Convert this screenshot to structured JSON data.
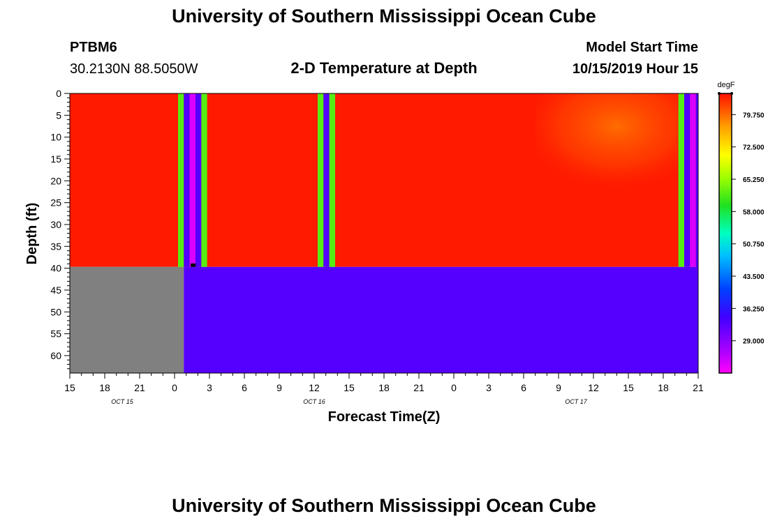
{
  "header": {
    "title": "University of Southern Mississippi Ocean Cube",
    "station": "PTBM6",
    "coords": "30.2130N 88.5050W",
    "subtitle": "2-D Temperature at Depth",
    "start_label": "Model Start Time",
    "start_value": "10/15/2019 Hour 15"
  },
  "footer": {
    "title": "University of Southern Mississippi Ocean Cube"
  },
  "colors": {
    "warm_red": "#ff1a00",
    "orange": "#ff7000",
    "violet": "#5500ff",
    "land_gray": "#808080",
    "green": "#20ee40",
    "magenta": "#ff00ff"
  },
  "chart_data": {
    "type": "heatmap",
    "title": "2-D Temperature at Depth",
    "xlabel": "Forecast Time(Z)",
    "ylabel": "Depth (ft)",
    "xlim": [
      15,
      69
    ],
    "ylim": [
      0,
      64
    ],
    "x_ticks": [
      15,
      18,
      21,
      24,
      27,
      30,
      33,
      36,
      39,
      42,
      45,
      48,
      51,
      54,
      57,
      60,
      63,
      66,
      69
    ],
    "x_tick_labels": [
      "15",
      "18",
      "21",
      "0",
      "3",
      "6",
      "9",
      "12",
      "15",
      "18",
      "21",
      "0",
      "3",
      "6",
      "9",
      "12",
      "15",
      "18",
      "21"
    ],
    "date_labels": [
      {
        "x": 19.5,
        "text": "OCT 15"
      },
      {
        "x": 36,
        "text": "OCT 16"
      },
      {
        "x": 58.5,
        "text": "OCT 17"
      }
    ],
    "y_ticks": [
      0,
      5,
      10,
      15,
      20,
      25,
      30,
      35,
      40,
      45,
      50,
      55,
      60
    ],
    "y_tick_labels": [
      "0",
      "5",
      "10",
      "15",
      "20",
      "25",
      "30",
      "35",
      "40",
      "45",
      "50",
      "55",
      "60"
    ],
    "colorbar": {
      "unit": "degF",
      "min": 21.75,
      "max": 84.5,
      "ticks": [
        29.0,
        36.25,
        43.5,
        50.75,
        58.0,
        65.25,
        72.5,
        79.75
      ],
      "tick_labels": [
        "29.000",
        "36.250",
        "43.500",
        "50.750",
        "58.000",
        "65.250",
        "72.500",
        "79.750"
      ]
    },
    "regions": [
      {
        "label": "upper-water",
        "x0": 15,
        "x1": 69,
        "y0": 0,
        "y1": 39.7,
        "temp": 82.5
      },
      {
        "label": "warm-patch",
        "x0": 55,
        "x1": 69,
        "y0": 0,
        "y1": 25,
        "temp": 77.5
      },
      {
        "label": "no-data",
        "x0": 15,
        "x1": 24.8,
        "y0": 39.7,
        "y1": 64,
        "temp": null
      },
      {
        "label": "deep-water",
        "x0": 24.8,
        "x1": 69,
        "y0": 39.7,
        "y1": 64,
        "temp": 33.0
      },
      {
        "label": "stripe-1",
        "x0": 24.3,
        "x1": 24.8,
        "y0": 0,
        "y1": 39.7,
        "temp": 62.0
      },
      {
        "label": "stripe-2",
        "x0": 24.8,
        "x1": 25.3,
        "y0": 0,
        "y1": 39.7,
        "temp": 33.0
      },
      {
        "label": "stripe-3",
        "x0": 25.3,
        "x1": 25.8,
        "y0": 0,
        "y1": 39.7,
        "temp": 24.0
      },
      {
        "label": "stripe-4",
        "x0": 25.8,
        "x1": 26.3,
        "y0": 0,
        "y1": 39.7,
        "temp": 33.0
      },
      {
        "label": "stripe-5",
        "x0": 26.3,
        "x1": 26.8,
        "y0": 0,
        "y1": 39.7,
        "temp": 62.0
      },
      {
        "label": "stripe-6",
        "x0": 36.3,
        "x1": 36.8,
        "y0": 0,
        "y1": 39.7,
        "temp": 62.0
      },
      {
        "label": "stripe-7",
        "x0": 36.8,
        "x1": 37.3,
        "y0": 0,
        "y1": 39.7,
        "temp": 33.0
      },
      {
        "label": "stripe-8",
        "x0": 37.3,
        "x1": 37.8,
        "y0": 0,
        "y1": 39.7,
        "temp": 62.0
      },
      {
        "label": "stripe-9",
        "x0": 67.3,
        "x1": 67.8,
        "y0": 0,
        "y1": 39.7,
        "temp": 62.0
      },
      {
        "label": "stripe-10",
        "x0": 67.8,
        "x1": 68.3,
        "y0": 0,
        "y1": 39.7,
        "temp": 33.0
      },
      {
        "label": "stripe-11",
        "x0": 68.3,
        "x1": 68.8,
        "y0": 0,
        "y1": 39.7,
        "temp": 24.0
      },
      {
        "label": "stripe-12",
        "x0": 68.8,
        "x1": 69,
        "y0": 0,
        "y1": 39.7,
        "temp": 33.0
      }
    ],
    "marker": {
      "x": 25.6,
      "y": 39.3,
      "label": "bottom-marker"
    }
  }
}
